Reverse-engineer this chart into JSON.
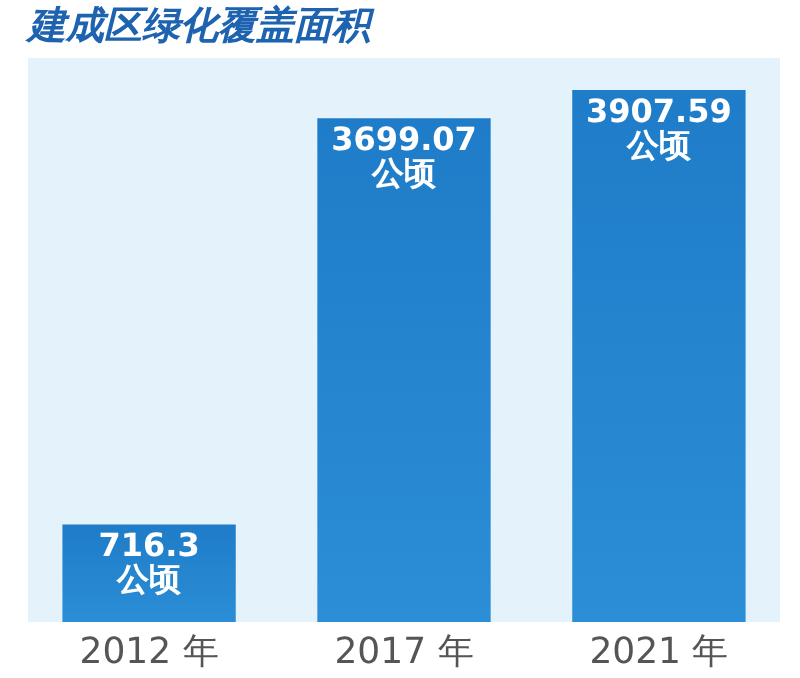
{
  "chart_data": {
    "type": "bar",
    "title": "建成区绿化覆盖面积",
    "categories": [
      "2012 年",
      "2017 年",
      "2021 年"
    ],
    "values": [
      716.3,
      3699.07,
      3907.59
    ],
    "value_labels": [
      "716.3\n公顷",
      "3699.07\n公顷",
      "3907.59\n公顷"
    ],
    "color": "#2b8ed6"
  }
}
